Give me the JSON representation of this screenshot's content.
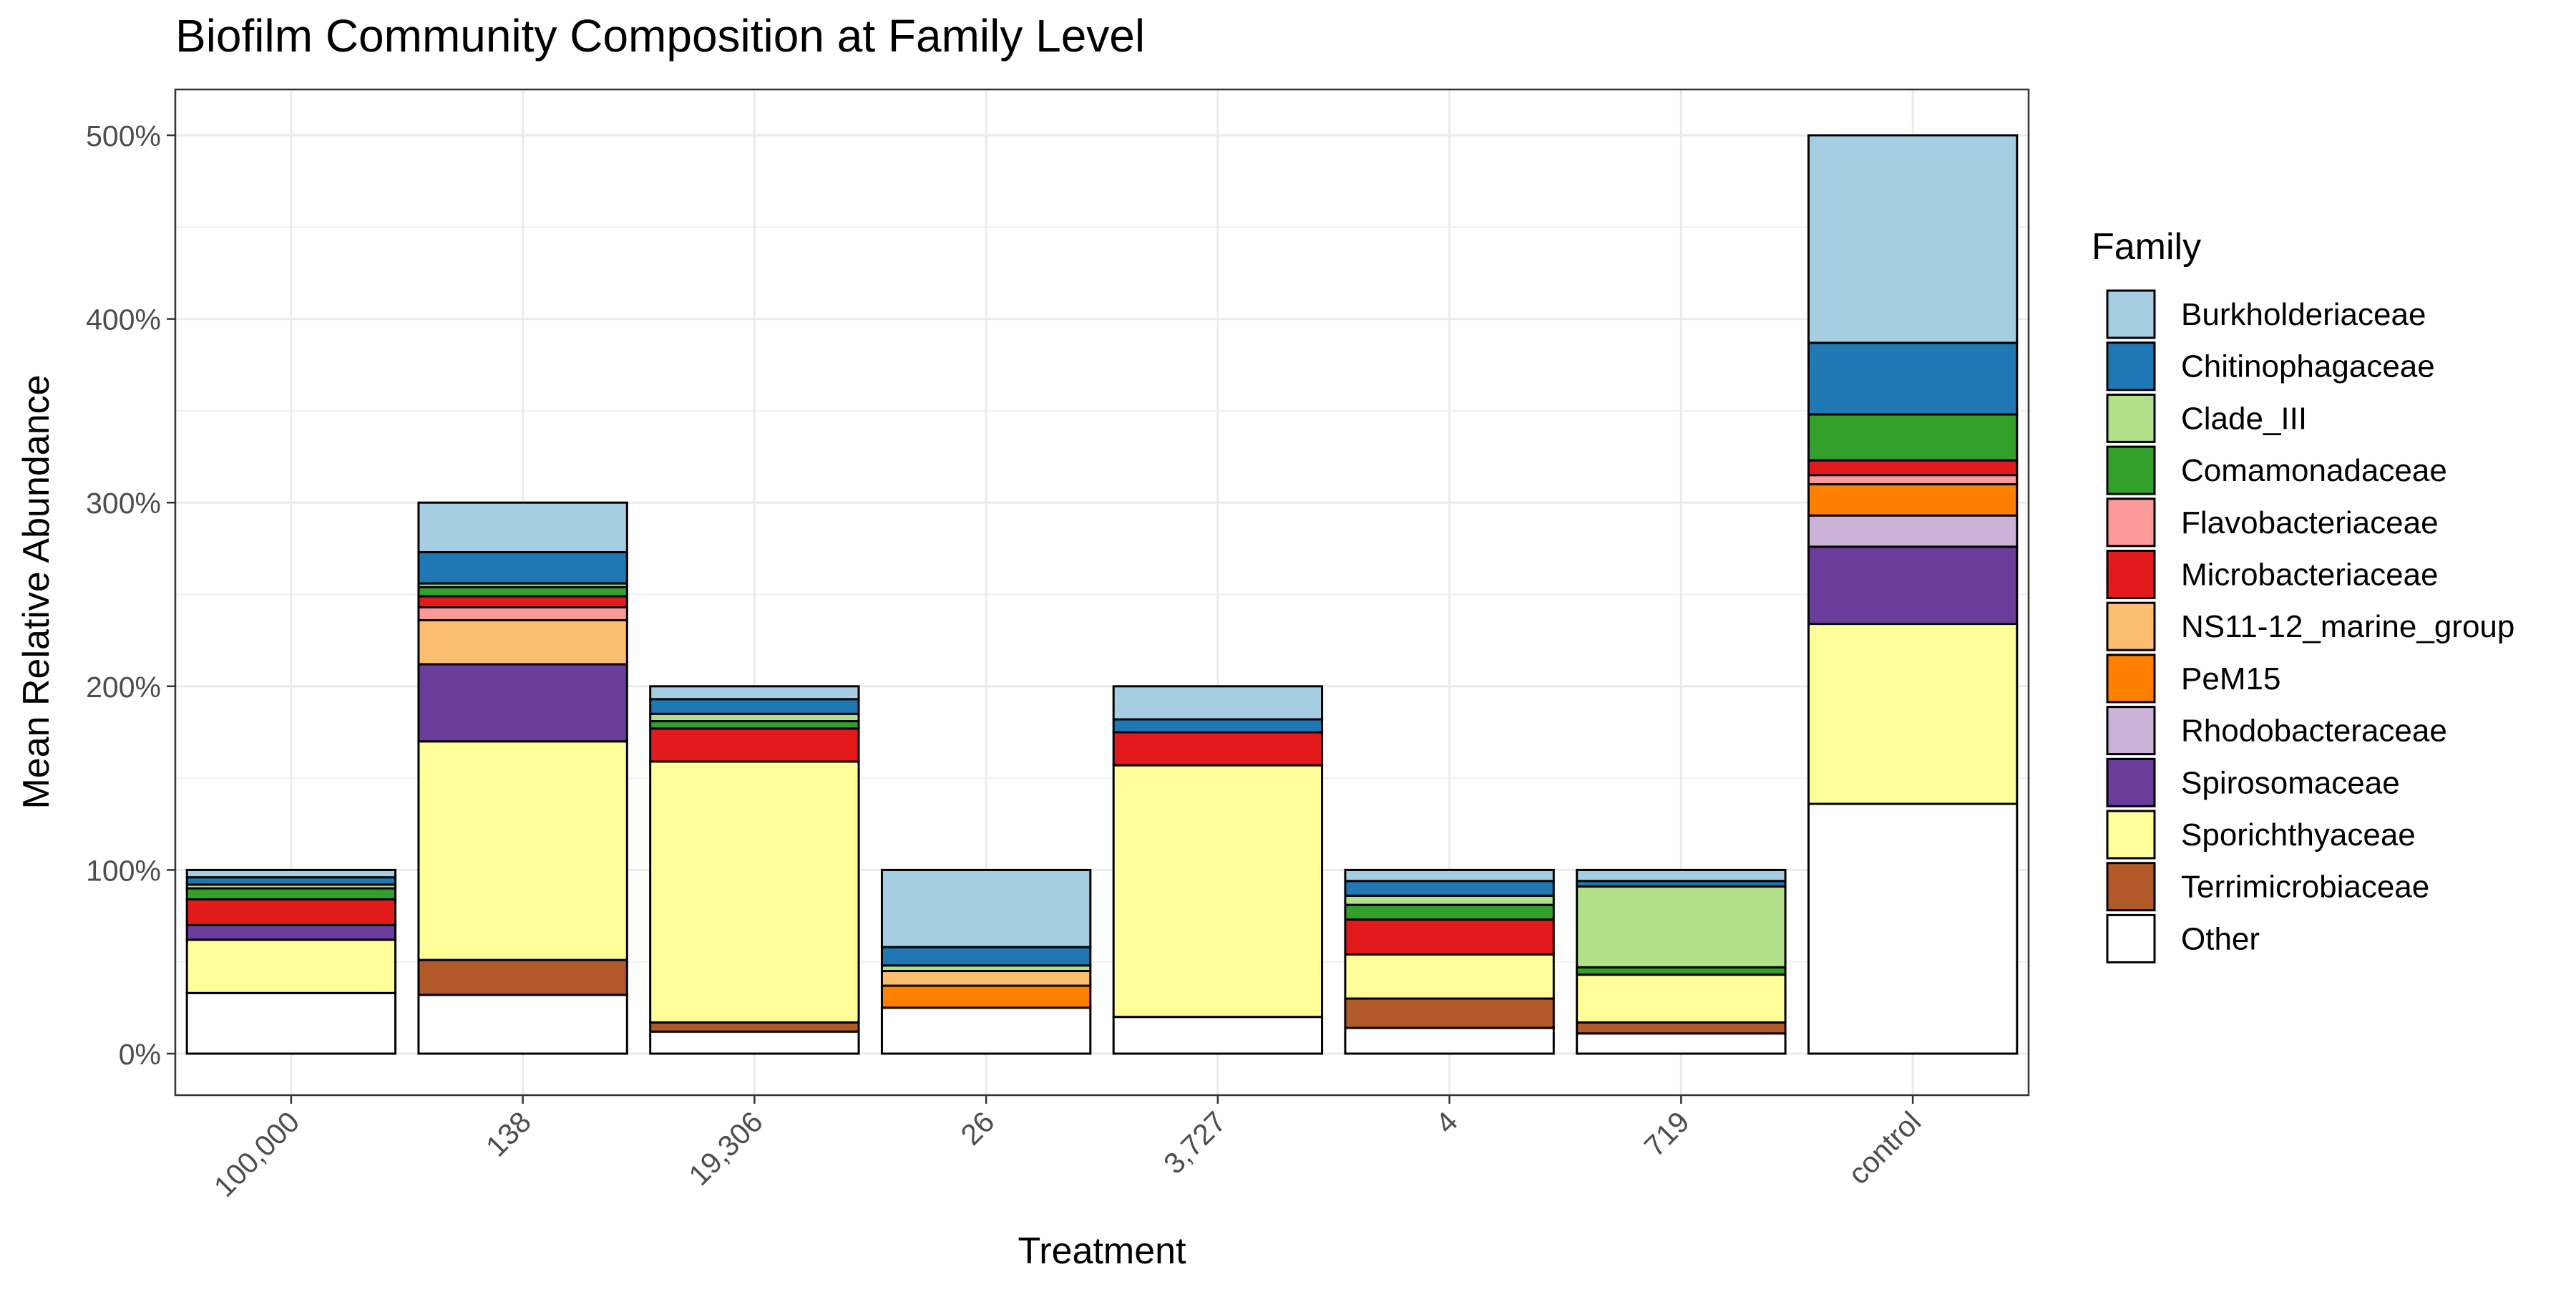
{
  "chart_data": {
    "type": "bar",
    "stacked": true,
    "title": "Biofilm Community Composition at Family Level",
    "xlabel": "Treatment",
    "ylabel": "Mean Relative Abundance",
    "ylim": [
      0,
      5.25
    ],
    "yticks": [
      0,
      1,
      2,
      3,
      4,
      5
    ],
    "ytick_labels": [
      "0%",
      "100%",
      "200%",
      "300%",
      "400%",
      "500%"
    ],
    "grid": true,
    "legend_position": "right",
    "legend_title": "Family",
    "categories": [
      "100,000",
      "138",
      "19,306",
      "26",
      "3,727",
      "4",
      "719",
      "control"
    ],
    "families": [
      {
        "name": "Burkholderiaceae",
        "color": "#a6cee3"
      },
      {
        "name": "Chitinophagaceae",
        "color": "#1f78b4"
      },
      {
        "name": "Clade_III",
        "color": "#b2df8a"
      },
      {
        "name": "Comamonadaceae",
        "color": "#33a02c"
      },
      {
        "name": "Flavobacteriaceae",
        "color": "#fb9a99"
      },
      {
        "name": "Microbacteriaceae",
        "color": "#e31a1c"
      },
      {
        "name": "NS11-12_marine_group",
        "color": "#fdbf6f"
      },
      {
        "name": "PeM15",
        "color": "#ff7f00"
      },
      {
        "name": "Rhodobacteraceae",
        "color": "#cab2d6"
      },
      {
        "name": "Spirosomaceae",
        "color": "#6a3d9a"
      },
      {
        "name": "Sporichthyaceae",
        "color": "#ffff99"
      },
      {
        "name": "Terrimicrobiaceae",
        "color": "#b15928"
      },
      {
        "name": "Other",
        "color": "#ffffff"
      }
    ],
    "stacks": [
      {
        "category": "100,000",
        "segments": [
          [
            "Other",
            0.33
          ],
          [
            "Sporichthyaceae",
            0.29
          ],
          [
            "Spirosomaceae",
            0.08
          ],
          [
            "Microbacteriaceae",
            0.14
          ],
          [
            "Comamonadaceae",
            0.06
          ],
          [
            "Clade_III",
            0.02
          ],
          [
            "Chitinophagaceae",
            0.04
          ],
          [
            "Burkholderiaceae",
            0.04
          ]
        ]
      },
      {
        "category": "138",
        "segments": [
          [
            "Other",
            0.32
          ],
          [
            "Terrimicrobiaceae",
            0.19
          ],
          [
            "Sporichthyaceae",
            1.19
          ],
          [
            "Spirosomaceae",
            0.42
          ],
          [
            "NS11-12_marine_group",
            0.24
          ],
          [
            "Flavobacteriaceae",
            0.07
          ],
          [
            "Microbacteriaceae",
            0.06
          ],
          [
            "Comamonadaceae",
            0.05
          ],
          [
            "Clade_III",
            0.02
          ],
          [
            "Chitinophagaceae",
            0.17
          ],
          [
            "Burkholderiaceae",
            0.27
          ]
        ]
      },
      {
        "category": "19,306",
        "segments": [
          [
            "Other",
            0.12
          ],
          [
            "Terrimicrobiaceae",
            0.05
          ],
          [
            "Sporichthyaceae",
            1.42
          ],
          [
            "Microbacteriaceae",
            0.18
          ],
          [
            "Comamonadaceae",
            0.04
          ],
          [
            "Clade_III",
            0.04
          ],
          [
            "Chitinophagaceae",
            0.08
          ],
          [
            "Burkholderiaceae",
            0.07
          ]
        ]
      },
      {
        "category": "26",
        "segments": [
          [
            "Other",
            0.25
          ],
          [
            "PeM15",
            0.12
          ],
          [
            "NS11-12_marine_group",
            0.08
          ],
          [
            "Clade_III",
            0.03
          ],
          [
            "Chitinophagaceae",
            0.1
          ],
          [
            "Burkholderiaceae",
            0.42
          ]
        ]
      },
      {
        "category": "3,727",
        "segments": [
          [
            "Other",
            0.2
          ],
          [
            "Sporichthyaceae",
            1.37
          ],
          [
            "Microbacteriaceae",
            0.18
          ],
          [
            "Chitinophagaceae",
            0.07
          ],
          [
            "Burkholderiaceae",
            0.18
          ]
        ]
      },
      {
        "category": "4",
        "segments": [
          [
            "Other",
            0.14
          ],
          [
            "Terrimicrobiaceae",
            0.16
          ],
          [
            "Sporichthyaceae",
            0.24
          ],
          [
            "Microbacteriaceae",
            0.19
          ],
          [
            "Comamonadaceae",
            0.08
          ],
          [
            "Clade_III",
            0.05
          ],
          [
            "Chitinophagaceae",
            0.08
          ],
          [
            "Burkholderiaceae",
            0.06
          ]
        ]
      },
      {
        "category": "719",
        "segments": [
          [
            "Other",
            0.11
          ],
          [
            "Terrimicrobiaceae",
            0.06
          ],
          [
            "Sporichthyaceae",
            0.26
          ],
          [
            "Comamonadaceae",
            0.04
          ],
          [
            "Clade_III",
            0.44
          ],
          [
            "Chitinophagaceae",
            0.03
          ],
          [
            "Burkholderiaceae",
            0.06
          ]
        ]
      },
      {
        "category": "control",
        "segments": [
          [
            "Other",
            1.36
          ],
          [
            "Sporichthyaceae",
            0.98
          ],
          [
            "Spirosomaceae",
            0.42
          ],
          [
            "Rhodobacteraceae",
            0.17
          ],
          [
            "PeM15",
            0.17
          ],
          [
            "Flavobacteriaceae",
            0.05
          ],
          [
            "Microbacteriaceae",
            0.08
          ],
          [
            "Comamonadaceae",
            0.25
          ],
          [
            "Chitinophagaceae",
            0.39
          ],
          [
            "Burkholderiaceae",
            1.13
          ]
        ]
      }
    ]
  }
}
